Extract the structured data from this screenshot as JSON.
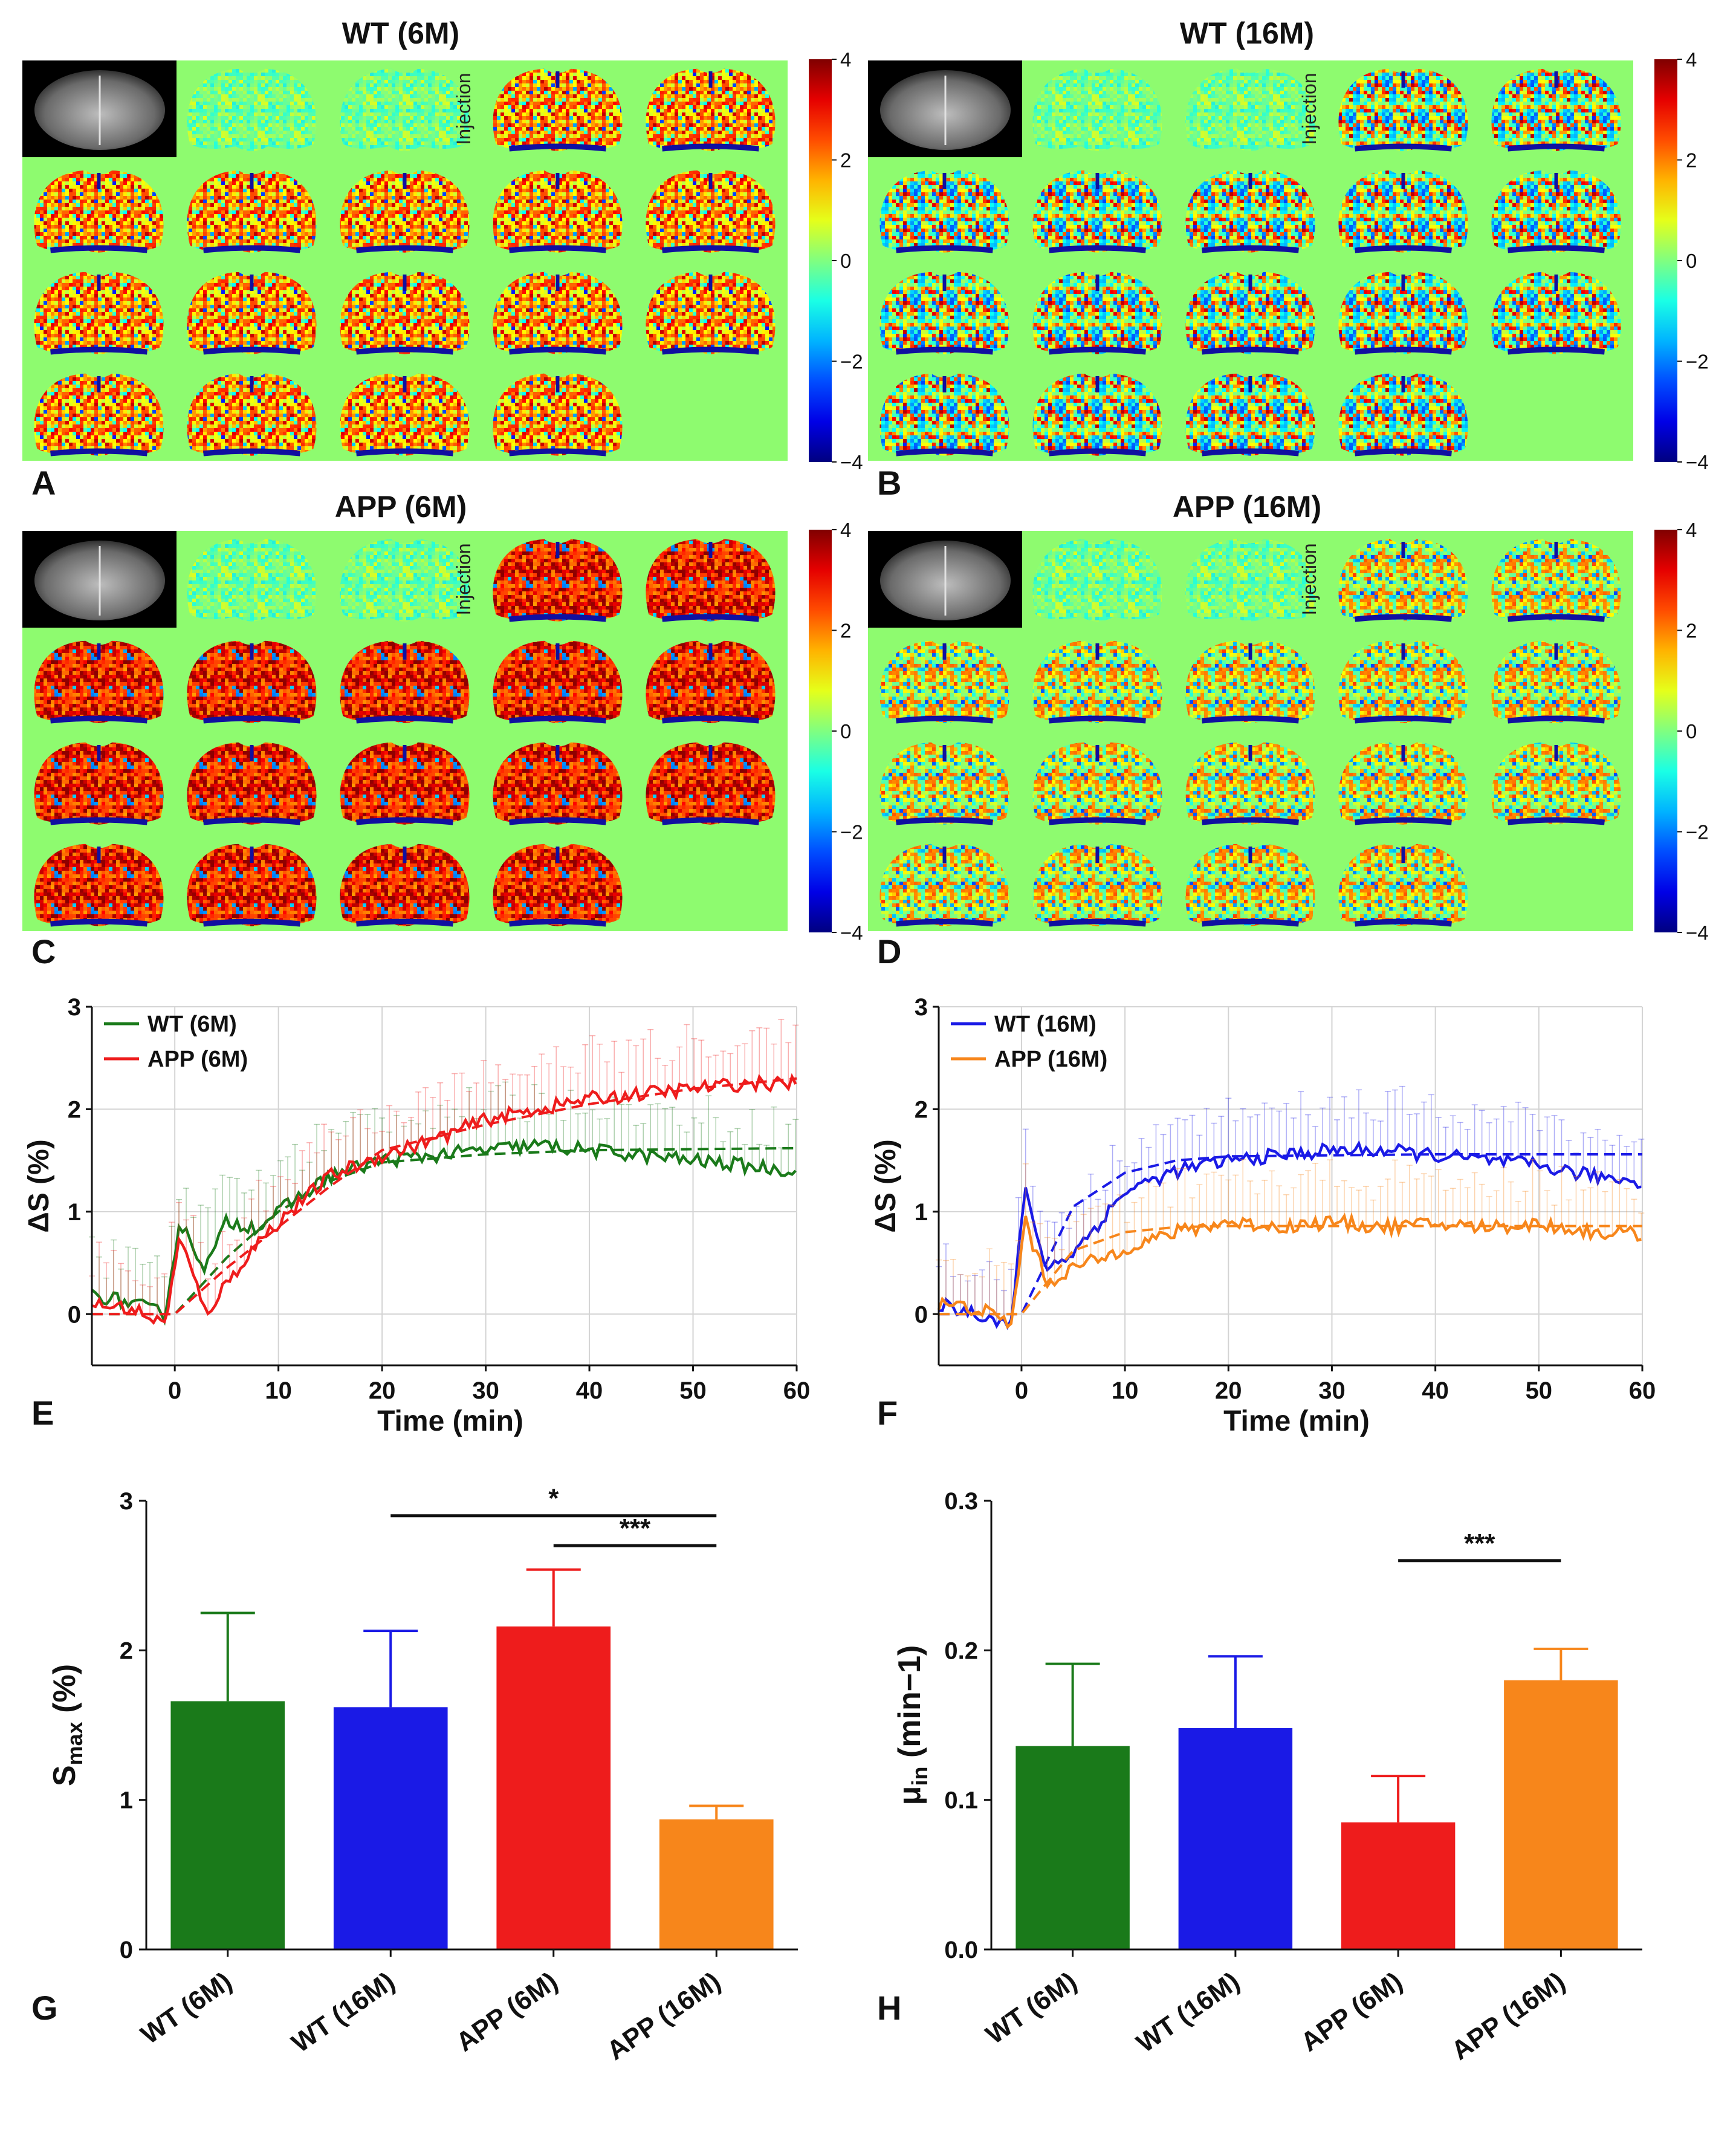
{
  "panels_top": {
    "injection_label": "Injection",
    "colorbar_ticks": [
      "4",
      "2",
      "0",
      "−2",
      "−4"
    ],
    "maps": [
      {
        "letter": "A",
        "title": "WT (6M)",
        "tone": "warm"
      },
      {
        "letter": "B",
        "title": "WT (16M)",
        "tone": "mixed"
      },
      {
        "letter": "C",
        "title": "APP (6M)",
        "tone": "hot"
      },
      {
        "letter": "D",
        "title": "APP (16M)",
        "tone": "mild"
      }
    ]
  },
  "colors": {
    "map_background": "#8efb6f",
    "wt6": "#1a7a1a",
    "app6": "#ee1c1c",
    "wt16": "#1a1ae6",
    "app16": "#f7861b"
  },
  "chart_data": [
    {
      "id": "E",
      "type": "line",
      "xlabel": "Time (min)",
      "ylabel": "ΔS (%)",
      "xlim": [
        -8,
        60
      ],
      "ylim": [
        -0.5,
        3
      ],
      "xticks": [
        "0",
        "10",
        "20",
        "30",
        "40",
        "50",
        "60"
      ],
      "yticks": [
        "0",
        "1",
        "2",
        "3"
      ],
      "legend": "top-left",
      "series": [
        {
          "name": "WT (6M)",
          "color": "#1a7a1a",
          "x": [
            -8,
            -4,
            -1,
            0.5,
            1,
            3,
            5,
            8,
            10,
            15,
            20,
            25,
            30,
            35,
            40,
            45,
            50,
            55,
            60
          ],
          "y": [
            0.2,
            0.1,
            0.0,
            0.9,
            0.8,
            0.45,
            0.9,
            0.85,
            1.0,
            1.35,
            1.5,
            1.55,
            1.6,
            1.65,
            1.6,
            1.55,
            1.5,
            1.45,
            1.4
          ],
          "fit": [
            0,
            0.55,
            1.0,
            1.3,
            1.48,
            1.56,
            1.6,
            1.61,
            1.62
          ]
        },
        {
          "name": "APP (6M)",
          "color": "#ee1c1c",
          "x": [
            -8,
            -4,
            -1,
            0.5,
            1,
            3,
            5,
            8,
            10,
            15,
            20,
            25,
            30,
            35,
            40,
            45,
            50,
            55,
            60
          ],
          "y": [
            0.1,
            0.05,
            -0.1,
            0.75,
            0.6,
            0.0,
            0.3,
            0.7,
            0.9,
            1.35,
            1.55,
            1.7,
            1.9,
            2.0,
            2.1,
            2.15,
            2.2,
            2.25,
            2.25
          ],
          "fit": [
            0,
            0.45,
            0.85,
            1.25,
            1.6,
            1.85,
            2.05,
            2.2,
            2.3
          ]
        }
      ]
    },
    {
      "id": "F",
      "type": "line",
      "xlabel": "Time (min)",
      "ylabel": "ΔS (%)",
      "xlim": [
        -8,
        60
      ],
      "ylim": [
        -0.5,
        3
      ],
      "xticks": [
        "0",
        "10",
        "20",
        "30",
        "40",
        "50",
        "60"
      ],
      "yticks": [
        "0",
        "1",
        "2",
        "3"
      ],
      "legend": "top-left",
      "series": [
        {
          "name": "WT (16M)",
          "color": "#1a1ae6",
          "x": [
            -8,
            -4,
            -1,
            0.5,
            1,
            2.5,
            5,
            8,
            10,
            15,
            20,
            25,
            30,
            35,
            40,
            45,
            50,
            55,
            60
          ],
          "y": [
            0.1,
            0.0,
            -0.1,
            1.35,
            0.9,
            0.45,
            0.6,
            0.95,
            1.2,
            1.4,
            1.5,
            1.55,
            1.6,
            1.6,
            1.55,
            1.5,
            1.45,
            1.35,
            1.3
          ],
          "fit": [
            0,
            1.05,
            1.38,
            1.5,
            1.54,
            1.55,
            1.56,
            1.56,
            1.56
          ]
        },
        {
          "name": "APP (16M)",
          "color": "#f7861b",
          "x": [
            -8,
            -4,
            -1,
            0.5,
            1,
            2.5,
            5,
            8,
            10,
            15,
            20,
            25,
            30,
            35,
            40,
            45,
            50,
            55,
            60
          ],
          "y": [
            0.1,
            0.05,
            -0.1,
            1.0,
            0.7,
            0.3,
            0.45,
            0.55,
            0.65,
            0.8,
            0.9,
            0.85,
            0.9,
            0.85,
            0.88,
            0.85,
            0.88,
            0.8,
            0.78
          ],
          "fit": [
            0,
            0.62,
            0.8,
            0.85,
            0.86,
            0.86,
            0.86,
            0.86,
            0.86
          ]
        }
      ]
    },
    {
      "id": "G",
      "type": "bar",
      "ylabel": "Smax (%)",
      "ylabel_main": "S",
      "ylabel_sub": "max",
      "ylabel_unit": " (%)",
      "ylim": [
        0,
        3
      ],
      "yticks": [
        "0",
        "1",
        "2",
        "3"
      ],
      "categories": [
        "WT (6M)",
        "WT (16M)",
        "APP (6M)",
        "APP (16M)"
      ],
      "values": [
        1.66,
        1.62,
        2.16,
        0.87
      ],
      "errors": [
        0.59,
        0.51,
        0.38,
        0.09
      ],
      "colors": [
        "#1a7a1a",
        "#1a1ae6",
        "#ee1c1c",
        "#f7861b"
      ],
      "significance": [
        {
          "from": 1,
          "to": 3,
          "level": 2.9,
          "label": "*"
        },
        {
          "from": 2,
          "to": 3,
          "level": 2.7,
          "label": "***"
        }
      ]
    },
    {
      "id": "H",
      "type": "bar",
      "ylabel": "μin (min−1)",
      "ylabel_main": "μ",
      "ylabel_sub": "in",
      "ylabel_unit": " (min−1)",
      "ylim": [
        0,
        0.3
      ],
      "yticks": [
        "0.0",
        "0.1",
        "0.2",
        "0.3"
      ],
      "categories": [
        "WT (6M)",
        "WT (16M)",
        "APP (6M)",
        "APP (16M)"
      ],
      "values": [
        0.136,
        0.148,
        0.085,
        0.18
      ],
      "errors": [
        0.055,
        0.048,
        0.031,
        0.021
      ],
      "colors": [
        "#1a7a1a",
        "#1a1ae6",
        "#ee1c1c",
        "#f7861b"
      ],
      "significance": [
        {
          "from": 2,
          "to": 3,
          "level": 0.26,
          "label": "***"
        }
      ]
    }
  ]
}
